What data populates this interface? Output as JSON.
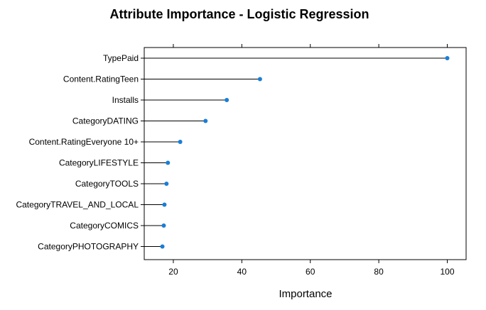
{
  "chart_data": {
    "type": "dotplot",
    "title": "Attribute Importance - Logistic Regression",
    "xlabel": "Importance",
    "ylabel": "",
    "xlim": [
      11.5,
      105.5
    ],
    "x_ticks": [
      20,
      40,
      60,
      80,
      100
    ],
    "grid": false,
    "legend": "none",
    "point_color": "#1a7ed6",
    "line_color": "#000000",
    "categories": [
      "TypePaid",
      "Content.RatingTeen",
      "Installs",
      "CategoryDATING",
      "Content.RatingEveryone 10+",
      "CategoryLIFESTYLE",
      "CategoryTOOLS",
      "CategoryTRAVEL_AND_LOCAL",
      "CategoryCOMICS",
      "CategoryPHOTOGRAPHY"
    ],
    "values": [
      100,
      45.3,
      35.6,
      29.4,
      22.0,
      18.4,
      18.0,
      17.4,
      17.2,
      16.8
    ]
  }
}
